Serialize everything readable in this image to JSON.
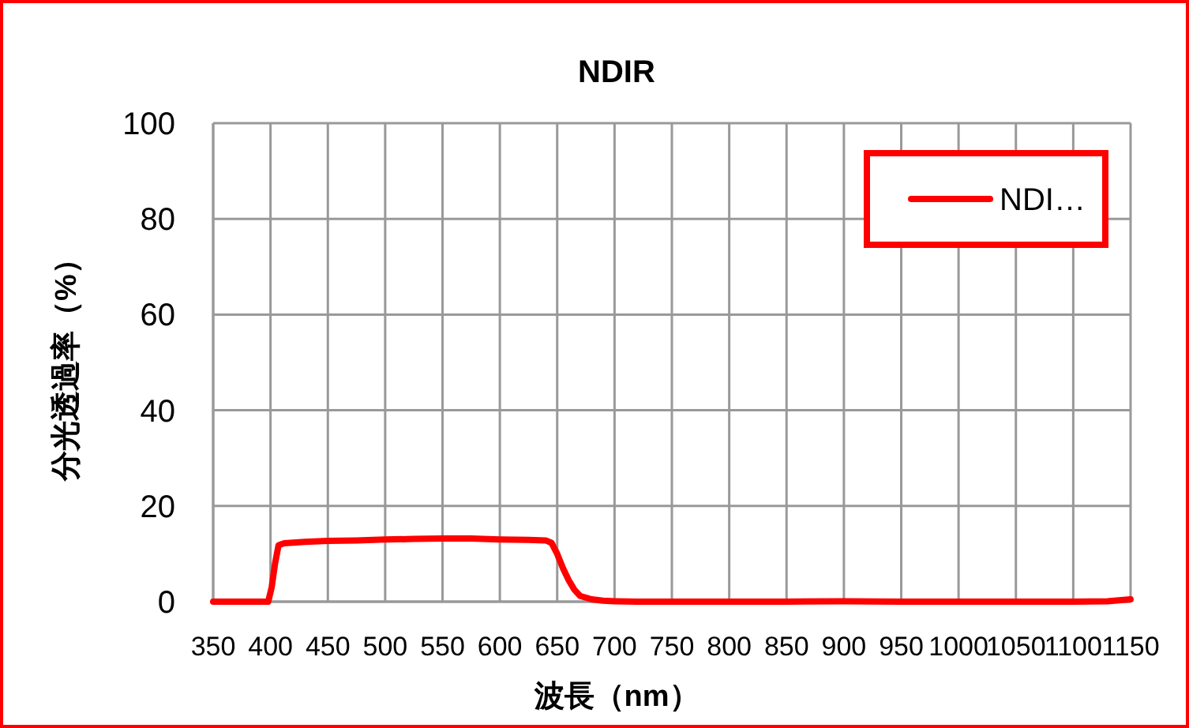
{
  "chart_data": {
    "type": "line",
    "title": "NDIR",
    "xlabel": "波長（nm）",
    "ylabel": "分光透過率（%）",
    "series": [
      {
        "name": "NDI…",
        "color": "#ff0000",
        "x": [
          350,
          380,
          398,
          401,
          404,
          407,
          412,
          430,
          450,
          475,
          500,
          525,
          550,
          575,
          600,
          625,
          640,
          645,
          650,
          655,
          660,
          665,
          670,
          680,
          690,
          700,
          720,
          750,
          800,
          850,
          900,
          950,
          1000,
          1050,
          1100,
          1130,
          1140,
          1150
        ],
        "values": [
          0,
          0,
          0,
          3,
          8,
          11.8,
          12.2,
          12.5,
          12.7,
          12.8,
          13,
          13.1,
          13.2,
          13.2,
          13,
          12.9,
          12.8,
          12.3,
          10,
          7,
          4.5,
          2.5,
          1.2,
          0.5,
          0.2,
          0.1,
          0,
          0,
          0,
          0,
          0.1,
          0,
          0,
          0,
          0,
          0.1,
          0.3,
          0.5
        ]
      }
    ],
    "xlim": [
      350,
      1150
    ],
    "xticks": [
      350,
      400,
      450,
      500,
      550,
      600,
      650,
      700,
      750,
      800,
      850,
      900,
      950,
      1000,
      1050,
      1100,
      1150
    ],
    "ylim": [
      0,
      100
    ],
    "yticks": [
      0,
      20,
      40,
      60,
      80,
      100
    ],
    "grid": true,
    "legend": "top right",
    "line_style": "solid",
    "marker": "none"
  }
}
